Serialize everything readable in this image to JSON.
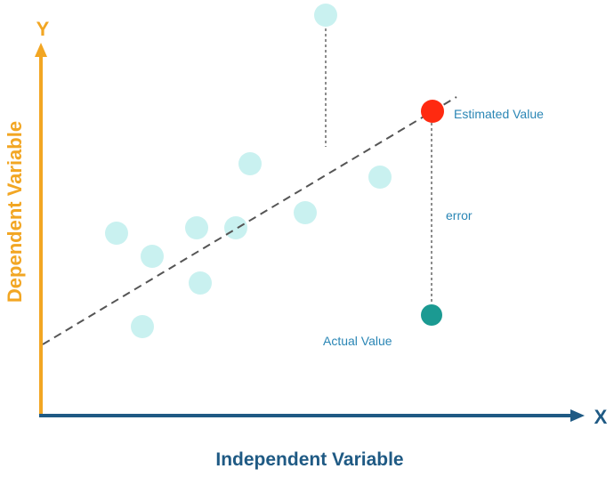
{
  "labels": {
    "y_axis_letter": "Y",
    "x_axis_letter": "X",
    "y_axis_title": "Dependent Variable",
    "x_axis_title": "Independent Variable",
    "estimated_value": "Estimated Value",
    "actual_value": "Actual Value",
    "error": "error"
  },
  "colors": {
    "y_axis": "#f2a623",
    "x_axis": "#1f5a84",
    "point": "#c9f1f0",
    "regression_line": "#555555",
    "estimated_point": "#ff2a10",
    "actual_point": "#1b9a92",
    "annotation_text": "#2a86b5"
  },
  "icons": {
    "y_axis_arrow": "arrow-up-icon",
    "x_axis_arrow": "arrow-right-icon"
  }
}
